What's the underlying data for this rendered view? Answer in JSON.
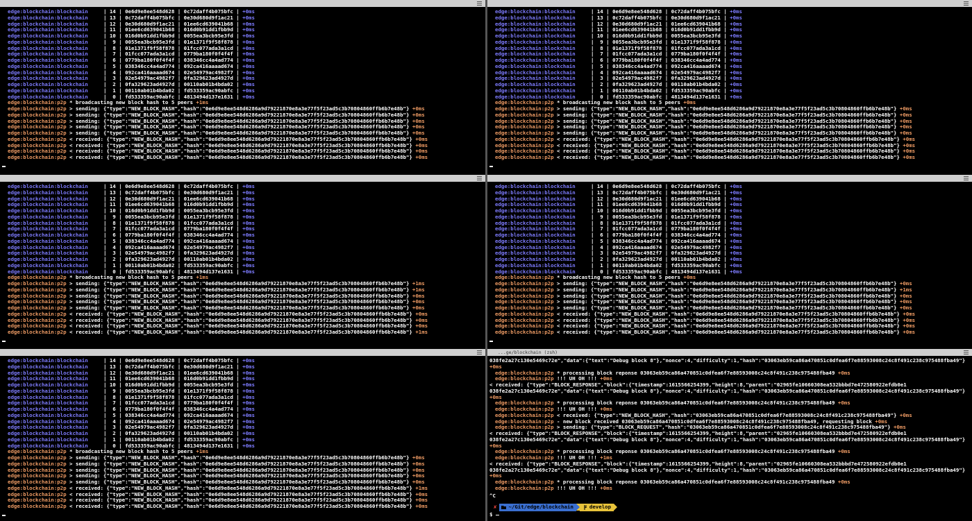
{
  "ns_chain": "edge:blockchain:blockchain",
  "ns_p2p": "edge:blockchain:p2p",
  "table_rows": [
    "    | 14 | 0e6d9e8ee548d628 | 0c72daff4b075bfc |",
    "    | 13 | 0c72daff4b075bfc | 0e30d680d9f1ac21 |",
    "    | 12 | 0e30d680d9f1ac21 | 01ee6cd639041b68 |",
    "    | 11 | 01ee6cd639041b68 | 016d0b91dd1fbb9d |",
    "    | 10 | 016d0b91dd1fbb9d | 0055ea3bcb95e3fd |",
    "    |  9 | 0055ea3bcb95e3fd | 01e1371f9f58f878 |",
    "    |  8 | 01e1371f9f58f878 | 01fcc077ada3a1cd |",
    "    |  7 | 01fcc077ada3a1cd | 0779ba180f0f4f4f |",
    "    |  6 | 0779ba180f0f4f4f | 038346cc4a4ad774 |",
    "    |  5 | 038346cc4a4ad774 | 092ca416aaaad674 |",
    "    |  4 | 092ca416aaaad674 | 02e54979ac4982f7 |",
    "    |  3 | 02e54979ac4982f7 | 0fa329623ad4927d |",
    "    |  2 | 0fa329623ad4927d | 00110ab01b4bda02 |",
    "    |  1 | 00110ab01b4bda02 | fd533359ac90abfc |",
    "    |  0 | fd533359ac90abfc | 4813494d137e1631 |"
  ],
  "table_time": "+0ms",
  "messages": {
    "broadcast": "* broadcasting new block hash to 5 peers",
    "sending": "> sending: {\"type\":\"NEW_BLOCK_HASH\",\"hash\":\"0e6d9e8ee548d6286a9d79221870e8a3e77f5f23ad5c3b70804860ffb6b7e48b\"}",
    "received": "< received: {\"type\":\"NEW_BLOCK_HASH\",\"hash\":\"0e6d9e8ee548d6286a9d79221870e8a3e77f5f23ad5c3b70804860ffb6b7e48b\"}"
  },
  "panes": [
    {
      "broadcast_time": "+1ms",
      "sending_times": [
        "+0ms",
        "+0ms",
        "+0ms",
        "+0ms",
        "+0ms"
      ],
      "received_times": [
        "+0ms",
        "+0ms",
        "+0ms",
        "+0ms"
      ]
    },
    {
      "broadcast_time": "+0ms",
      "sending_times": [
        "+0ms",
        "+0ms",
        "+0ms",
        "+0ms",
        "+0ms"
      ],
      "received_times": [
        "+0ms",
        "+0ms",
        "+0ms",
        "+0ms"
      ]
    },
    {
      "broadcast_time": "+1ms",
      "sending_times": [
        "+1ms",
        "+1ms",
        "+0ms",
        "+0ms",
        "+0ms"
      ],
      "received_times": [
        "+0ms",
        "+0ms",
        "+0ms",
        "+1ms"
      ]
    },
    {
      "broadcast_time": "+0ms",
      "sending_times": [
        "+0ms",
        "+1ms",
        "+0ms",
        "+0ms",
        "+0ms"
      ],
      "received_times": [
        "+0ms",
        "+0ms",
        "+0ms",
        "+0ms"
      ]
    },
    {
      "broadcast_time": "+1ms",
      "sending_times": [
        "+0ms",
        "+0ms",
        "+0ms",
        "+0ms",
        "+0ms"
      ],
      "received_times": [
        "+1ms",
        "+0ms",
        "+0ms",
        "+0ms"
      ]
    }
  ],
  "zsh": {
    "title": "...ge/blockchain (zsh)",
    "lines": [
      {
        "msg": "038fe2a27c130e5469c72e\",\"data\":{\"text\":\"Debug block 8\"},\"nonce\":4,\"difficulty\":1,\"hash\":\"03063eb59ca86a470851c0dfea6f7e88593008c24c8f491c238c975488fba49\"}"
      },
      {
        "t": "+0ms"
      },
      {
        "msg": "* processing block reponse 03063eb59ca86a470851c0dfea6f7e88593008c24c8f491c238c975488fba49",
        "t": "+0ms"
      },
      {
        "msg": "!!! UH OH !!!",
        "t": "+0ms"
      },
      {
        "msg": "< received: {\"type\":\"BLOCK_RESPONSE\",\"block\":{\"timestamp\":1615566254399,\"height\":8,\"parent\":\"02965fe10660308ea532bbbd7e472580922efdb0e1"
      },
      {
        "msg": "038fe2a27c130e5469c72e\",\"data\":{\"text\":\"Debug block 8\"},\"nonce\":4,\"difficulty\":1,\"hash\":\"03063eb59ca86a470851c0dfea6f7e88593008c24c8f491c238c975488fba49\"}"
      },
      {
        "t": "+0ms"
      },
      {
        "msg": "* processing block reponse 03063eb59ca86a470851c0dfea6f7e88593008c24c8f491c238c975488fba49",
        "t": "+0ms"
      },
      {
        "msg": "!!! UH OH !!!",
        "t": "+0ms"
      },
      {
        "msg": "< received: {\"type\":\"NEW_BLOCK_HASH\",\"hash\":\"03063eb59ca86a470851c0dfea6f7e88593008c24c8f491c238c975488fba49\"}",
        "t": "+0ms"
      },
      {
        "msg": "- new block received 03063eb59ca86a470851c0dfea6f7e88593008c24c8f491c238c975488fba49, requesting block",
        "t": "+0ms"
      },
      {
        "msg": "> sending: {\"type\":\"BLOCK_REQUEST\",\"hash\":\"03063eb59ca86a470851c0dfea6f7e88593008c24c8f491c238c975488fba49\"}",
        "t": "+0ms"
      },
      {
        "msg": "< received: {\"type\":\"BLOCK_RESPONSE\",\"block\":{\"timestamp\":1615566254399,\"height\":8,\"parent\":\"02965fe10660308ea532bbbd7e472580922efdb0e1"
      },
      {
        "msg": "038fe2a27c130e5469c72e\",\"data\":{\"text\":\"Debug block 8\"},\"nonce\":4,\"difficulty\":1,\"hash\":\"03063eb59ca86a470851c0dfea6f7e88593008c24c8f491c238c975488fba49\"}"
      },
      {
        "t": "+0ms"
      },
      {
        "msg": "* processing block reponse 03063eb59ca86a470851c0dfea6f7e88593008c24c8f491c238c975488fba49",
        "t": "+0ms"
      },
      {
        "msg": "!!! UH OH !!!",
        "t": "+1ms"
      },
      {
        "msg": "< received: {\"type\":\"BLOCK_RESPONSE\",\"block\":{\"timestamp\":1615566254399,\"height\":8,\"parent\":\"02965fe10660308ea532bbbd7e472580922efdb0e1"
      },
      {
        "msg": "038fe2a27c130e5469c72e\",\"data\":{\"text\":\"Debug block 8\"},\"nonce\":4,\"difficulty\":1,\"hash\":\"03063eb59ca86a470851c0dfea6f7e88593008c24c8f491c238c975488fba49\"}"
      },
      {
        "t": "+0ms"
      },
      {
        "msg": "* processing block reponse 03063eb59ca86a470851c0dfea6f7e88593008c24c8f491c238c975488fba49",
        "t": "+0ms"
      },
      {
        "msg": "!!! UH OH !!!",
        "t": "+0ms"
      }
    ],
    "interrupt": "^C",
    "prompt": {
      "status": "✘",
      "path": "~/Git/edge/blockchain",
      "branch": "develop",
      "symbol": "$"
    }
  }
}
